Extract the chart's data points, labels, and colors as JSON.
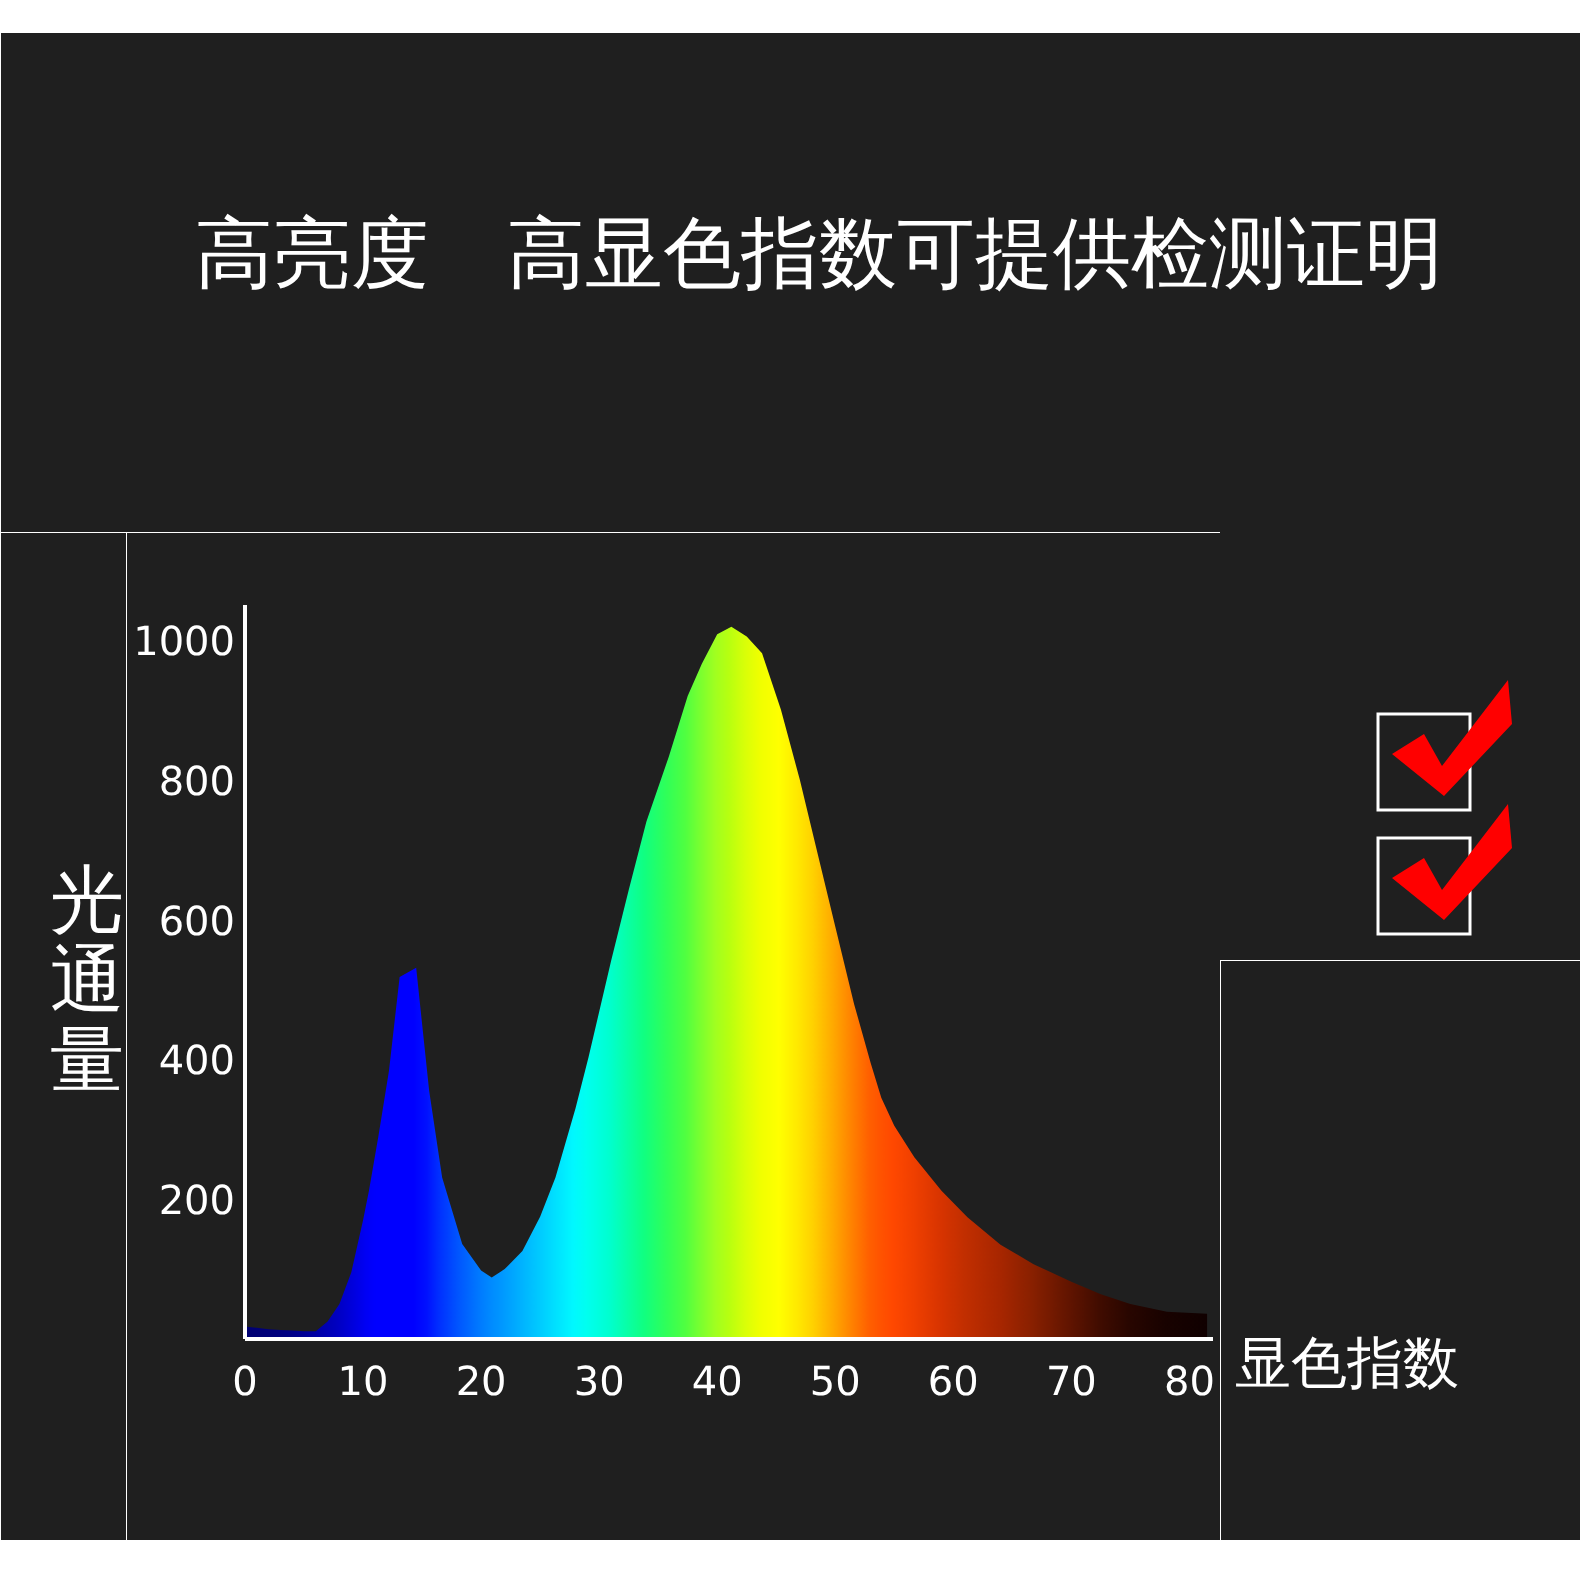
{
  "chart_data": {
    "type": "area",
    "title": "高亮度　高显色指数可提供检测证明",
    "xlabel": "显色指数",
    "ylabel": "光通量",
    "x": [
      0,
      1,
      2,
      3,
      4,
      5,
      6,
      7,
      8,
      9,
      10,
      10.5,
      11.3,
      12.2,
      13.1,
      14.5,
      15.6,
      16.7,
      18.4,
      20,
      20.9,
      22,
      23.5,
      25,
      26.3,
      28,
      29.1,
      31,
      32.5,
      34,
      35.9,
      37.5,
      38.7,
      40,
      41.2,
      42.5,
      43.8,
      45.4,
      47,
      48.3,
      50,
      51.6,
      53,
      53.9,
      55,
      56.7,
      59,
      61.2,
      64,
      66.8,
      70,
      72.5,
      75,
      78.1,
      81.5
    ],
    "values": [
      18,
      16,
      14,
      13,
      12,
      11,
      11,
      25,
      50,
      95,
      170,
      212,
      290,
      384,
      518,
      531,
      355,
      231,
      136,
      98,
      88,
      100,
      126,
      175,
      231,
      330,
      403,
      540,
      642,
      740,
      833,
      920,
      966,
      1008,
      1019,
      1005,
      981,
      900,
      800,
      709,
      590,
      479,
      395,
      345,
      305,
      260,
      212,
      174,
      135,
      107,
      82,
      64,
      50,
      39,
      36
    ],
    "colors": [
      "#000070",
      "#000074",
      "#000078",
      "#00007c",
      "#000084",
      "#000090",
      "#0000a0",
      "#0000b0",
      "#0000c0",
      "#0000d5",
      "#0000ea",
      "#0000f5",
      "#0000ff",
      "#0000ff",
      "#0000ff",
      "#0000ff",
      "#0010ff",
      "#0030ff",
      "#0058ff",
      "#0078ff",
      "#0088ff",
      "#0098ff",
      "#00b0ff",
      "#00c8ff",
      "#00ddff",
      "#00f8ff",
      "#00fff0",
      "#00ffd0",
      "#08ffa8",
      "#10ff80",
      "#30ff58",
      "#50ff40",
      "#78ff30",
      "#a0ff20",
      "#b8ff10",
      "#d8ff08",
      "#f0ff00",
      "#ffff00",
      "#ffe800",
      "#ffd000",
      "#ffa800",
      "#ff8000",
      "#ff6000",
      "#ff5400",
      "#ff4800",
      "#f04000",
      "#d83400",
      "#c02e00",
      "#a82600",
      "#882000",
      "#601400",
      "#400c00",
      "#280600",
      "#180200",
      "#100000"
    ],
    "xlim": [
      0,
      82
    ],
    "xticks": [
      0,
      10,
      20,
      30,
      40,
      50,
      60,
      70,
      80
    ],
    "ylim": [
      0,
      1050
    ],
    "yticks": [
      200,
      400,
      600,
      800,
      1000
    ]
  }
}
